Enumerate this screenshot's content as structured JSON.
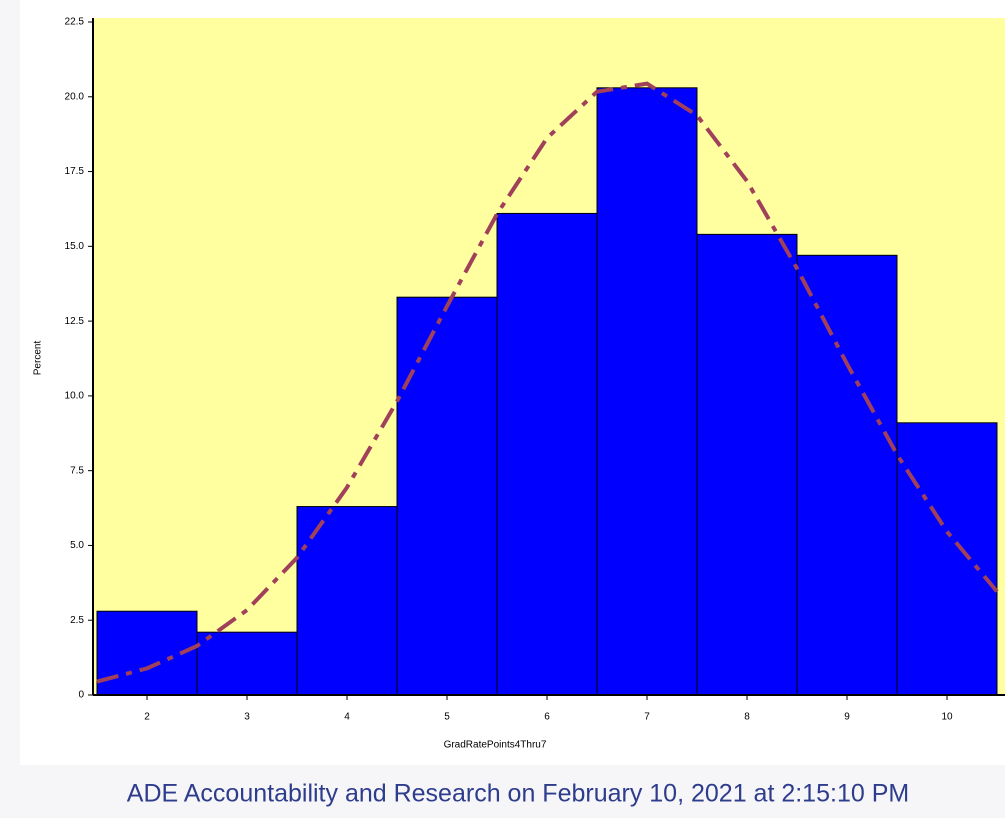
{
  "chart_data": {
    "type": "histogram",
    "bins": [
      1.5,
      2.5,
      3.5,
      4.5,
      5.5,
      6.5,
      7.5,
      8.5,
      9.5,
      10.5
    ],
    "values": [
      2.8,
      2.1,
      6.3,
      13.3,
      16.1,
      20.3,
      15.4,
      14.7,
      9.1
    ],
    "color": "#0000ff",
    "curve": {
      "color": "#a0405a",
      "x": [
        1.5,
        2,
        2.5,
        3,
        3.5,
        4,
        4.5,
        5,
        5.5,
        6,
        6.5,
        7,
        7.5,
        8,
        8.5,
        9,
        9.5,
        10,
        10.5
      ],
      "values": [
        0.45,
        0.89,
        1.64,
        2.84,
        4.59,
        6.94,
        9.82,
        13.0,
        16.08,
        18.62,
        20.17,
        20.44,
        19.38,
        17.18,
        14.26,
        11.07,
        8.04,
        5.46,
        3.46
      ]
    },
    "xlabel": "GradRatePoints4Thru7",
    "ylabel": "Percent",
    "xlim": [
      1.46,
      10.54
    ],
    "ylim": [
      0,
      22.5
    ],
    "xticks": [
      2,
      3,
      4,
      5,
      6,
      7,
      8,
      9,
      10
    ],
    "yticks": [
      0,
      2.5,
      {
        "value": 5,
        "label": "5.0"
      },
      7.5,
      {
        "value": 10,
        "label": "10.0"
      },
      12.5,
      {
        "value": 15,
        "label": "15.0"
      },
      17.5,
      {
        "value": 20,
        "label": "20.0"
      },
      22.5
    ],
    "footer": "ADE Accountability and Research on February 10, 2021 at 2:15:10 PM"
  }
}
